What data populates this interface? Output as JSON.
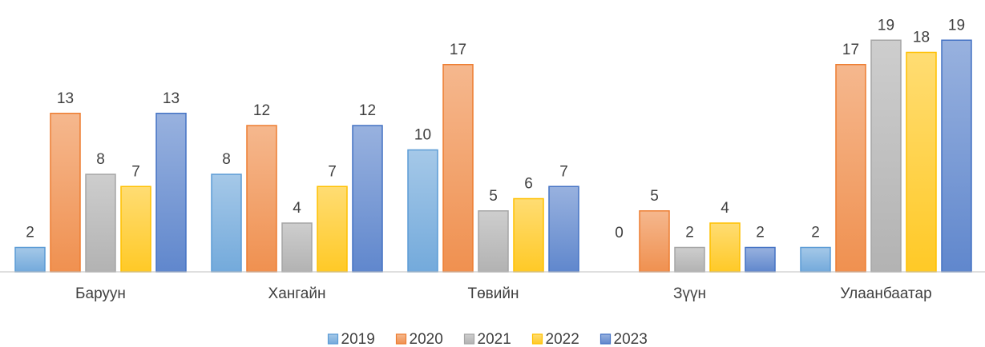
{
  "chart_data": {
    "type": "bar",
    "categories": [
      "Баруун",
      "Хангайн",
      "Төвийн",
      "Зүүн",
      "Улаанбаатар"
    ],
    "series": [
      {
        "name": "2019",
        "color": "#5b9bd5",
        "values": [
          2,
          8,
          10,
          0,
          2
        ]
      },
      {
        "name": "2020",
        "color": "#ed7d31",
        "values": [
          13,
          12,
          17,
          5,
          17
        ]
      },
      {
        "name": "2021",
        "color": "#a5a5a5",
        "values": [
          8,
          4,
          5,
          2,
          19
        ]
      },
      {
        "name": "2022",
        "color": "#ffc000",
        "values": [
          7,
          7,
          6,
          4,
          18
        ]
      },
      {
        "name": "2023",
        "color": "#4472c4",
        "values": [
          13,
          12,
          7,
          2,
          19
        ]
      }
    ],
    "ylim": [
      0,
      20
    ],
    "legend": "bottom"
  }
}
